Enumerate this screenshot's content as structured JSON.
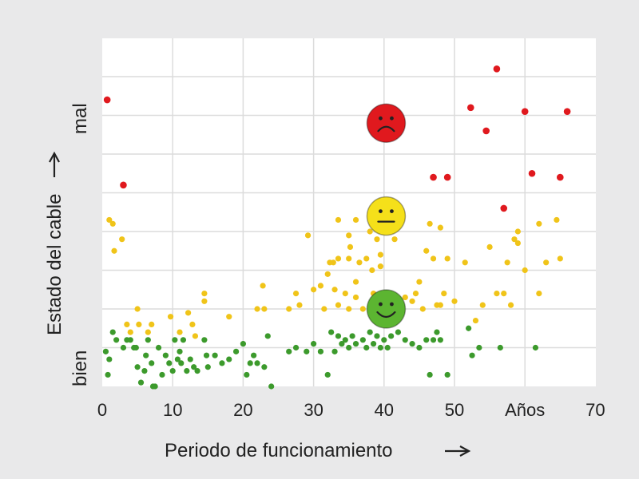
{
  "chart_data": {
    "type": "scatter",
    "xlabel": "Periodo de funcionamiento",
    "ylabel": "Estado del cable",
    "xlim": [
      0,
      70
    ],
    "x_ticks": [
      "0",
      "10",
      "20",
      "30",
      "40",
      "50",
      "Años",
      "70"
    ],
    "y_labels": {
      "low": "bien",
      "high": "mal"
    },
    "grid": true,
    "colors": {
      "good": "#3c9a2c",
      "medium": "#f0c419",
      "bad": "#e0191e",
      "plot_bg": "#ffffff",
      "page_bg": "#e9e9ea"
    },
    "face_icons": [
      {
        "name": "sad-face-icon",
        "x": 40.3,
        "y": 6.8,
        "color": "#e0191e"
      },
      {
        "name": "neutral-face-icon",
        "x": 40.3,
        "y": 4.4,
        "color": "#f5e01a"
      },
      {
        "name": "happy-face-icon",
        "x": 40.3,
        "y": 2.0,
        "color": "#5cb531"
      }
    ],
    "series": [
      {
        "color": "#e0191e",
        "points": [
          [
            0.7,
            7.4
          ],
          [
            3,
            5.2
          ],
          [
            47,
            5.4
          ],
          [
            49,
            5.4
          ],
          [
            52.3,
            7.2
          ],
          [
            54.5,
            6.6
          ],
          [
            56,
            8.2
          ],
          [
            57,
            4.6
          ],
          [
            60,
            7.1
          ],
          [
            61,
            5.5
          ],
          [
            65,
            5.4
          ],
          [
            66,
            7.1
          ]
        ]
      },
      {
        "color": "#f0c419",
        "points": [
          [
            1,
            4.3
          ],
          [
            1.5,
            4.2
          ],
          [
            1.7,
            3.5
          ],
          [
            2.8,
            3.8
          ],
          [
            3.5,
            1.6
          ],
          [
            4,
            1.4
          ],
          [
            5,
            2.0
          ],
          [
            5.2,
            1.6
          ],
          [
            6.5,
            1.4
          ],
          [
            7,
            1.6
          ],
          [
            9.7,
            1.8
          ],
          [
            11,
            1.4
          ],
          [
            12.2,
            1.9
          ],
          [
            12.8,
            1.6
          ],
          [
            13.2,
            1.3
          ],
          [
            14.5,
            2.4
          ],
          [
            14.5,
            2.2
          ],
          [
            18,
            1.8
          ],
          [
            22,
            2.0
          ],
          [
            22.8,
            2.6
          ],
          [
            23,
            2.0
          ],
          [
            26.5,
            2.0
          ],
          [
            27.5,
            2.4
          ],
          [
            28,
            2.1
          ],
          [
            29.2,
            3.9
          ],
          [
            30,
            2.5
          ],
          [
            31,
            2.6
          ],
          [
            31.5,
            2.0
          ],
          [
            32,
            2.9
          ],
          [
            32.3,
            3.2
          ],
          [
            32.8,
            3.2
          ],
          [
            33,
            2.5
          ],
          [
            33.5,
            3.3
          ],
          [
            33.5,
            2.1
          ],
          [
            33.5,
            4.3
          ],
          [
            34.5,
            2.4
          ],
          [
            35,
            2.0
          ],
          [
            35,
            3.3
          ],
          [
            35,
            3.9
          ],
          [
            35.2,
            3.6
          ],
          [
            36,
            2.3
          ],
          [
            36,
            2.7
          ],
          [
            36,
            4.3
          ],
          [
            36.5,
            3.2
          ],
          [
            37,
            2.0
          ],
          [
            37.5,
            3.3
          ],
          [
            38,
            4.0
          ],
          [
            38.3,
            3.0
          ],
          [
            38.5,
            2.4
          ],
          [
            39,
            3.8
          ],
          [
            39.5,
            3.4
          ],
          [
            39.5,
            3.1
          ],
          [
            41.5,
            3.8
          ],
          [
            43,
            2.3
          ],
          [
            44,
            2.2
          ],
          [
            44.5,
            2.4
          ],
          [
            45,
            2.7
          ],
          [
            45.5,
            2.0
          ],
          [
            46,
            3.5
          ],
          [
            46.5,
            4.2
          ],
          [
            47,
            3.3
          ],
          [
            47.5,
            2.1
          ],
          [
            48,
            4.1
          ],
          [
            48,
            2.1
          ],
          [
            48.5,
            2.4
          ],
          [
            49,
            3.3
          ],
          [
            50,
            2.2
          ],
          [
            51.5,
            3.2
          ],
          [
            53,
            1.7
          ],
          [
            54,
            2.1
          ],
          [
            55,
            3.6
          ],
          [
            56,
            2.4
          ],
          [
            57,
            2.4
          ],
          [
            57.5,
            3.2
          ],
          [
            58,
            2.1
          ],
          [
            58.5,
            3.8
          ],
          [
            59,
            4.0
          ],
          [
            59,
            3.7
          ],
          [
            60,
            3.0
          ],
          [
            62,
            4.2
          ],
          [
            62,
            2.4
          ],
          [
            63,
            3.2
          ],
          [
            64.5,
            4.3
          ],
          [
            65,
            3.3
          ]
        ]
      },
      {
        "color": "#3c9a2c",
        "points": [
          [
            0.5,
            0.9
          ],
          [
            0.8,
            0.3
          ],
          [
            1,
            0.7
          ],
          [
            1.5,
            1.4
          ],
          [
            2,
            1.2
          ],
          [
            3,
            1.0
          ],
          [
            3.5,
            1.2
          ],
          [
            4,
            1.2
          ],
          [
            4.5,
            1.0
          ],
          [
            4.8,
            1.0
          ],
          [
            5,
            0.5
          ],
          [
            5.5,
            0.1
          ],
          [
            6,
            0.4
          ],
          [
            6.2,
            0.8
          ],
          [
            6.5,
            1.2
          ],
          [
            7,
            0.6
          ],
          [
            7.2,
            0.0
          ],
          [
            7.5,
            0.0
          ],
          [
            8,
            1.0
          ],
          [
            8.5,
            0.3
          ],
          [
            9,
            0.8
          ],
          [
            9.5,
            0.6
          ],
          [
            10,
            0.4
          ],
          [
            10.3,
            1.2
          ],
          [
            10.7,
            0.7
          ],
          [
            11,
            0.9
          ],
          [
            11.2,
            0.6
          ],
          [
            11.5,
            1.2
          ],
          [
            12,
            0.4
          ],
          [
            12.5,
            0.7
          ],
          [
            13,
            0.5
          ],
          [
            13.5,
            0.4
          ],
          [
            14.5,
            1.2
          ],
          [
            14.8,
            0.8
          ],
          [
            15,
            0.5
          ],
          [
            16,
            0.8
          ],
          [
            17,
            0.6
          ],
          [
            18,
            0.7
          ],
          [
            19,
            0.9
          ],
          [
            20,
            1.1
          ],
          [
            20.5,
            0.3
          ],
          [
            21,
            0.6
          ],
          [
            21.5,
            0.8
          ],
          [
            22,
            0.6
          ],
          [
            23,
            0.5
          ],
          [
            23.5,
            1.3
          ],
          [
            24,
            0.0
          ],
          [
            26.5,
            0.9
          ],
          [
            27.5,
            1.0
          ],
          [
            29,
            0.9
          ],
          [
            30,
            1.1
          ],
          [
            31,
            0.9
          ],
          [
            32,
            0.3
          ],
          [
            32.5,
            1.4
          ],
          [
            33,
            0.9
          ],
          [
            33.5,
            1.3
          ],
          [
            34,
            1.1
          ],
          [
            34.5,
            1.2
          ],
          [
            35,
            1.0
          ],
          [
            35.5,
            1.3
          ],
          [
            36,
            1.1
          ],
          [
            37,
            1.2
          ],
          [
            37.5,
            1.0
          ],
          [
            38,
            1.4
          ],
          [
            38.5,
            1.1
          ],
          [
            39,
            1.3
          ],
          [
            39.5,
            1.0
          ],
          [
            40,
            1.2
          ],
          [
            40.5,
            1.0
          ],
          [
            41,
            1.3
          ],
          [
            42,
            1.4
          ],
          [
            43,
            1.2
          ],
          [
            44,
            1.1
          ],
          [
            45,
            1.0
          ],
          [
            46,
            1.2
          ],
          [
            46.5,
            0.3
          ],
          [
            47,
            1.2
          ],
          [
            47.5,
            1.4
          ],
          [
            48,
            1.2
          ],
          [
            49,
            0.3
          ],
          [
            52,
            1.5
          ],
          [
            52.5,
            0.8
          ],
          [
            53.5,
            1.0
          ],
          [
            56.5,
            1.0
          ],
          [
            61.5,
            1.0
          ]
        ]
      }
    ]
  }
}
